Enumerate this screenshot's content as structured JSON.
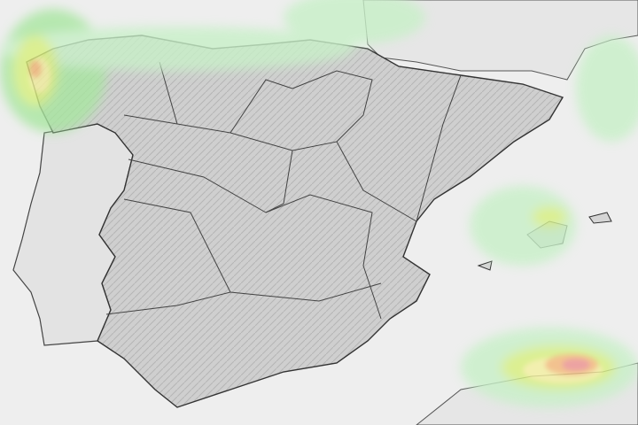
{
  "map": {
    "colors": {
      "sea": "#eeeeee",
      "land_spain": "#c9c9c9",
      "land_other": "#e4e4e4",
      "borders": "#333333",
      "precip_light": "#c8f0c8",
      "precip_green": "#a8e6a0",
      "precip_yellowgreen": "#d8f07a",
      "precip_yellow": "#f4f0a0",
      "precip_orange": "#f4b878",
      "precip_red": "#ec9090"
    }
  }
}
